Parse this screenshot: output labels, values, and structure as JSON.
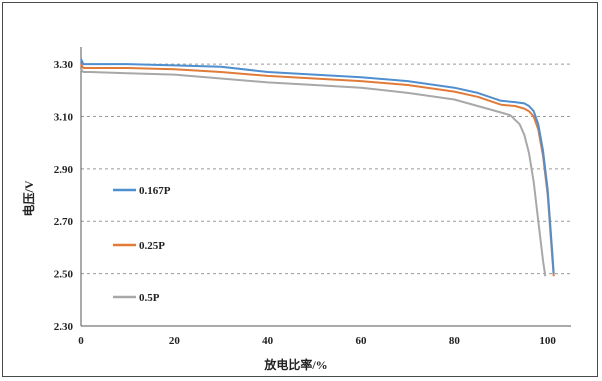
{
  "chart_data": {
    "type": "line",
    "title": "",
    "xlabel": "放电比率/%",
    "ylabel": "电压/V",
    "xlim": [
      0,
      105
    ],
    "ylim": [
      2.3,
      3.35
    ],
    "x_ticks": [
      0,
      20,
      40,
      60,
      80,
      100
    ],
    "x_tick_labels": [
      "0",
      "20",
      "40",
      "60",
      "80",
      "100"
    ],
    "y_ticks": [
      2.3,
      2.5,
      2.7,
      2.9,
      3.1,
      3.3
    ],
    "y_tick_labels": [
      "2.30",
      "2.50",
      "2.70",
      "2.90",
      "3.10",
      "3.30"
    ],
    "grid": "horizontal dashed",
    "legend_position": "left",
    "series": [
      {
        "name": "0.167P",
        "color": "#4f8fd0",
        "x": [
          0,
          0.5,
          2,
          10,
          20,
          30,
          40,
          50,
          60,
          70,
          80,
          85,
          90,
          93,
          95,
          96,
          97,
          98,
          99,
          100,
          100.5,
          101,
          101.3
        ],
        "y": [
          3.32,
          3.3,
          3.3,
          3.3,
          3.295,
          3.29,
          3.27,
          3.26,
          3.25,
          3.235,
          3.21,
          3.19,
          3.16,
          3.155,
          3.15,
          3.14,
          3.12,
          3.07,
          2.97,
          2.82,
          2.7,
          2.58,
          2.5
        ]
      },
      {
        "name": "0.25P",
        "color": "#e07b39",
        "x": [
          0,
          0.5,
          2,
          10,
          20,
          30,
          40,
          50,
          60,
          70,
          80,
          85,
          90,
          93,
          95,
          96,
          97,
          98,
          99,
          100,
          100.5,
          101,
          101.3
        ],
        "y": [
          3.3,
          3.285,
          3.285,
          3.285,
          3.28,
          3.27,
          3.255,
          3.245,
          3.235,
          3.22,
          3.195,
          3.175,
          3.145,
          3.14,
          3.13,
          3.12,
          3.1,
          3.05,
          2.95,
          2.8,
          2.68,
          2.56,
          2.49
        ]
      },
      {
        "name": "0.5P",
        "color": "#a8a8a8",
        "x": [
          0,
          0.5,
          2,
          10,
          20,
          30,
          40,
          50,
          60,
          70,
          80,
          85,
          88,
          90,
          92,
          94,
          95,
          96,
          97,
          98,
          99,
          99.5
        ],
        "y": [
          3.28,
          3.27,
          3.27,
          3.265,
          3.26,
          3.245,
          3.23,
          3.22,
          3.21,
          3.19,
          3.165,
          3.14,
          3.125,
          3.115,
          3.105,
          3.07,
          3.03,
          2.96,
          2.85,
          2.7,
          2.55,
          2.49
        ]
      }
    ]
  }
}
